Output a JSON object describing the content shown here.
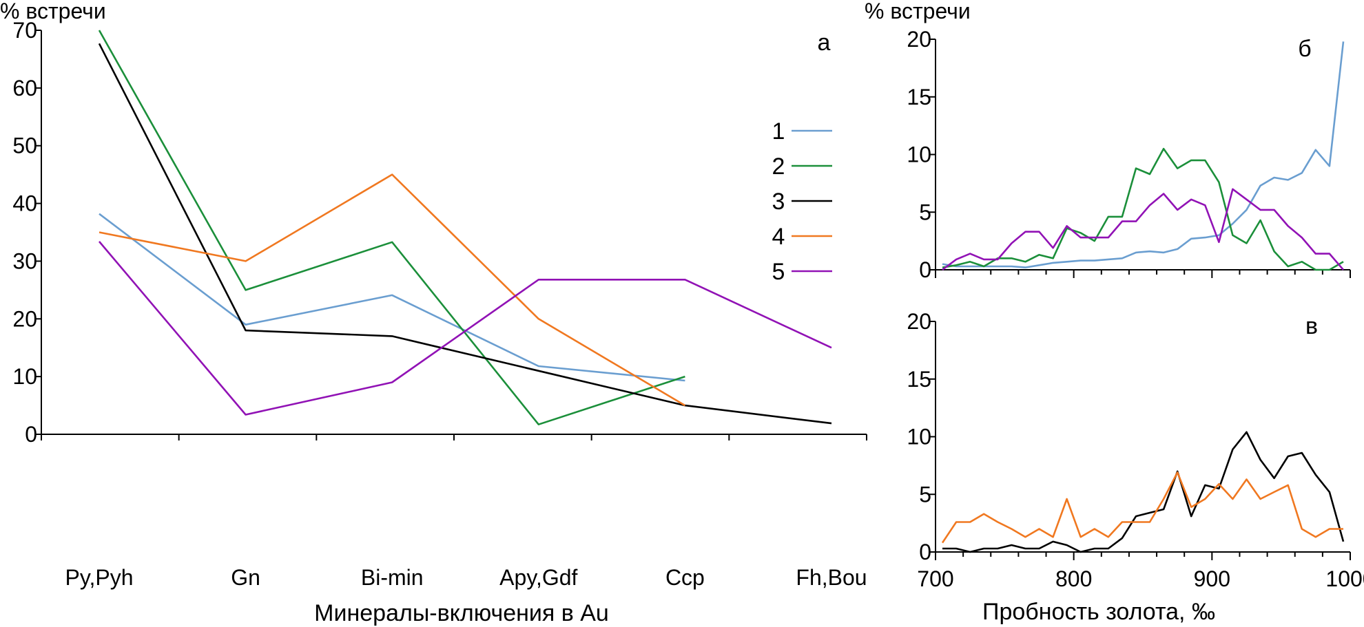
{
  "chart_data": [
    {
      "panel": "а",
      "type": "line",
      "xlabel": "Минералы-включения в Au",
      "ylabel": "% встречи",
      "categories": [
        "Py,Pyh",
        "Gn",
        "Bi-min",
        "Apy,Gdf",
        "Ccp",
        "Fh,Bou"
      ],
      "ylim": [
        0,
        70
      ],
      "yticks": [
        0,
        10,
        20,
        30,
        40,
        50,
        60,
        70
      ],
      "legend_position": "right",
      "series": [
        {
          "name": "1",
          "color": "#6a9ed0",
          "values": [
            38.2,
            19,
            24.1,
            11.8,
            9.3,
            null
          ]
        },
        {
          "name": "2",
          "color": "#1b8f3a",
          "values": [
            70,
            25,
            33.3,
            1.7,
            10,
            null
          ]
        },
        {
          "name": "3",
          "color": "#000000",
          "values": [
            67.7,
            18,
            17,
            11,
            5,
            1.9
          ]
        },
        {
          "name": "4",
          "color": "#f07820",
          "values": [
            35,
            30,
            45,
            20,
            5,
            null
          ]
        },
        {
          "name": "5",
          "color": "#9112b5",
          "values": [
            33.4,
            3.4,
            9,
            26.8,
            26.8,
            15
          ]
        }
      ]
    },
    {
      "panel": "б",
      "type": "line",
      "xlabel": "",
      "ylabel": "% встречи",
      "xlim": [
        700,
        1000
      ],
      "ylim": [
        0,
        20
      ],
      "yticks": [
        0,
        5,
        10,
        15,
        20
      ],
      "x": [
        705,
        715,
        725,
        735,
        745,
        755,
        765,
        775,
        785,
        795,
        805,
        815,
        825,
        835,
        845,
        855,
        865,
        875,
        885,
        895,
        905,
        915,
        925,
        935,
        945,
        955,
        965,
        975,
        985,
        995
      ],
      "series": [
        {
          "name": "1",
          "color": "#6a9ed0",
          "values": [
            0.5,
            0.3,
            0.3,
            0.3,
            0.3,
            0.3,
            0.2,
            0.4,
            0.6,
            0.7,
            0.8,
            0.8,
            0.9,
            1.0,
            1.5,
            1.6,
            1.5,
            1.8,
            2.7,
            2.8,
            3.0,
            4.0,
            5.2,
            7.3,
            8.0,
            7.8,
            8.4,
            10.4,
            9.0,
            19.8
          ]
        },
        {
          "name": "2",
          "color": "#1b8f3a",
          "values": [
            0.2,
            0.4,
            0.7,
            0.3,
            1.0,
            1.0,
            0.7,
            1.3,
            1.0,
            3.6,
            3.2,
            2.5,
            4.6,
            4.6,
            8.8,
            8.3,
            10.5,
            8.8,
            9.5,
            9.5,
            7.6,
            3.0,
            2.3,
            4.3,
            1.6,
            0.3,
            0.7,
            0.0,
            0.0,
            0.7
          ]
        },
        {
          "name": "5",
          "color": "#9112b5",
          "values": [
            0.0,
            0.9,
            1.4,
            0.9,
            0.9,
            2.3,
            3.3,
            3.3,
            1.9,
            3.8,
            2.8,
            2.8,
            2.8,
            4.2,
            4.2,
            5.6,
            6.6,
            5.2,
            6.1,
            5.6,
            2.4,
            7.0,
            6.1,
            5.2,
            5.2,
            3.8,
            2.8,
            1.4,
            1.4,
            0.0
          ]
        }
      ]
    },
    {
      "panel": "в",
      "type": "line",
      "xlabel": "Пробность золота, ‰",
      "ylabel": "",
      "xlim": [
        700,
        1000
      ],
      "xticks": [
        700,
        800,
        900,
        1000
      ],
      "ylim": [
        0,
        20
      ],
      "yticks": [
        0,
        5,
        10,
        15,
        20
      ],
      "x": [
        705,
        715,
        725,
        735,
        745,
        755,
        765,
        775,
        785,
        795,
        805,
        815,
        825,
        835,
        845,
        855,
        865,
        875,
        885,
        895,
        905,
        915,
        925,
        935,
        945,
        955,
        965,
        975,
        985,
        995
      ],
      "series": [
        {
          "name": "3",
          "color": "#000000",
          "values": [
            0.3,
            0.3,
            0.0,
            0.3,
            0.3,
            0.6,
            0.3,
            0.3,
            0.9,
            0.6,
            0.0,
            0.3,
            0.3,
            1.2,
            3.1,
            3.4,
            3.7,
            7.0,
            3.1,
            5.8,
            5.5,
            8.9,
            10.4,
            8.0,
            6.4,
            8.3,
            8.6,
            6.7,
            5.2,
            0.9
          ]
        },
        {
          "name": "4",
          "color": "#f07820",
          "values": [
            0.8,
            2.6,
            2.6,
            3.3,
            2.6,
            2.0,
            1.3,
            2.0,
            1.3,
            4.6,
            1.3,
            2.0,
            1.3,
            2.6,
            2.6,
            2.6,
            4.6,
            6.9,
            3.9,
            4.6,
            5.9,
            4.6,
            6.3,
            4.6,
            5.2,
            5.8,
            2.0,
            1.3,
            2.0,
            2.0
          ]
        }
      ]
    }
  ]
}
